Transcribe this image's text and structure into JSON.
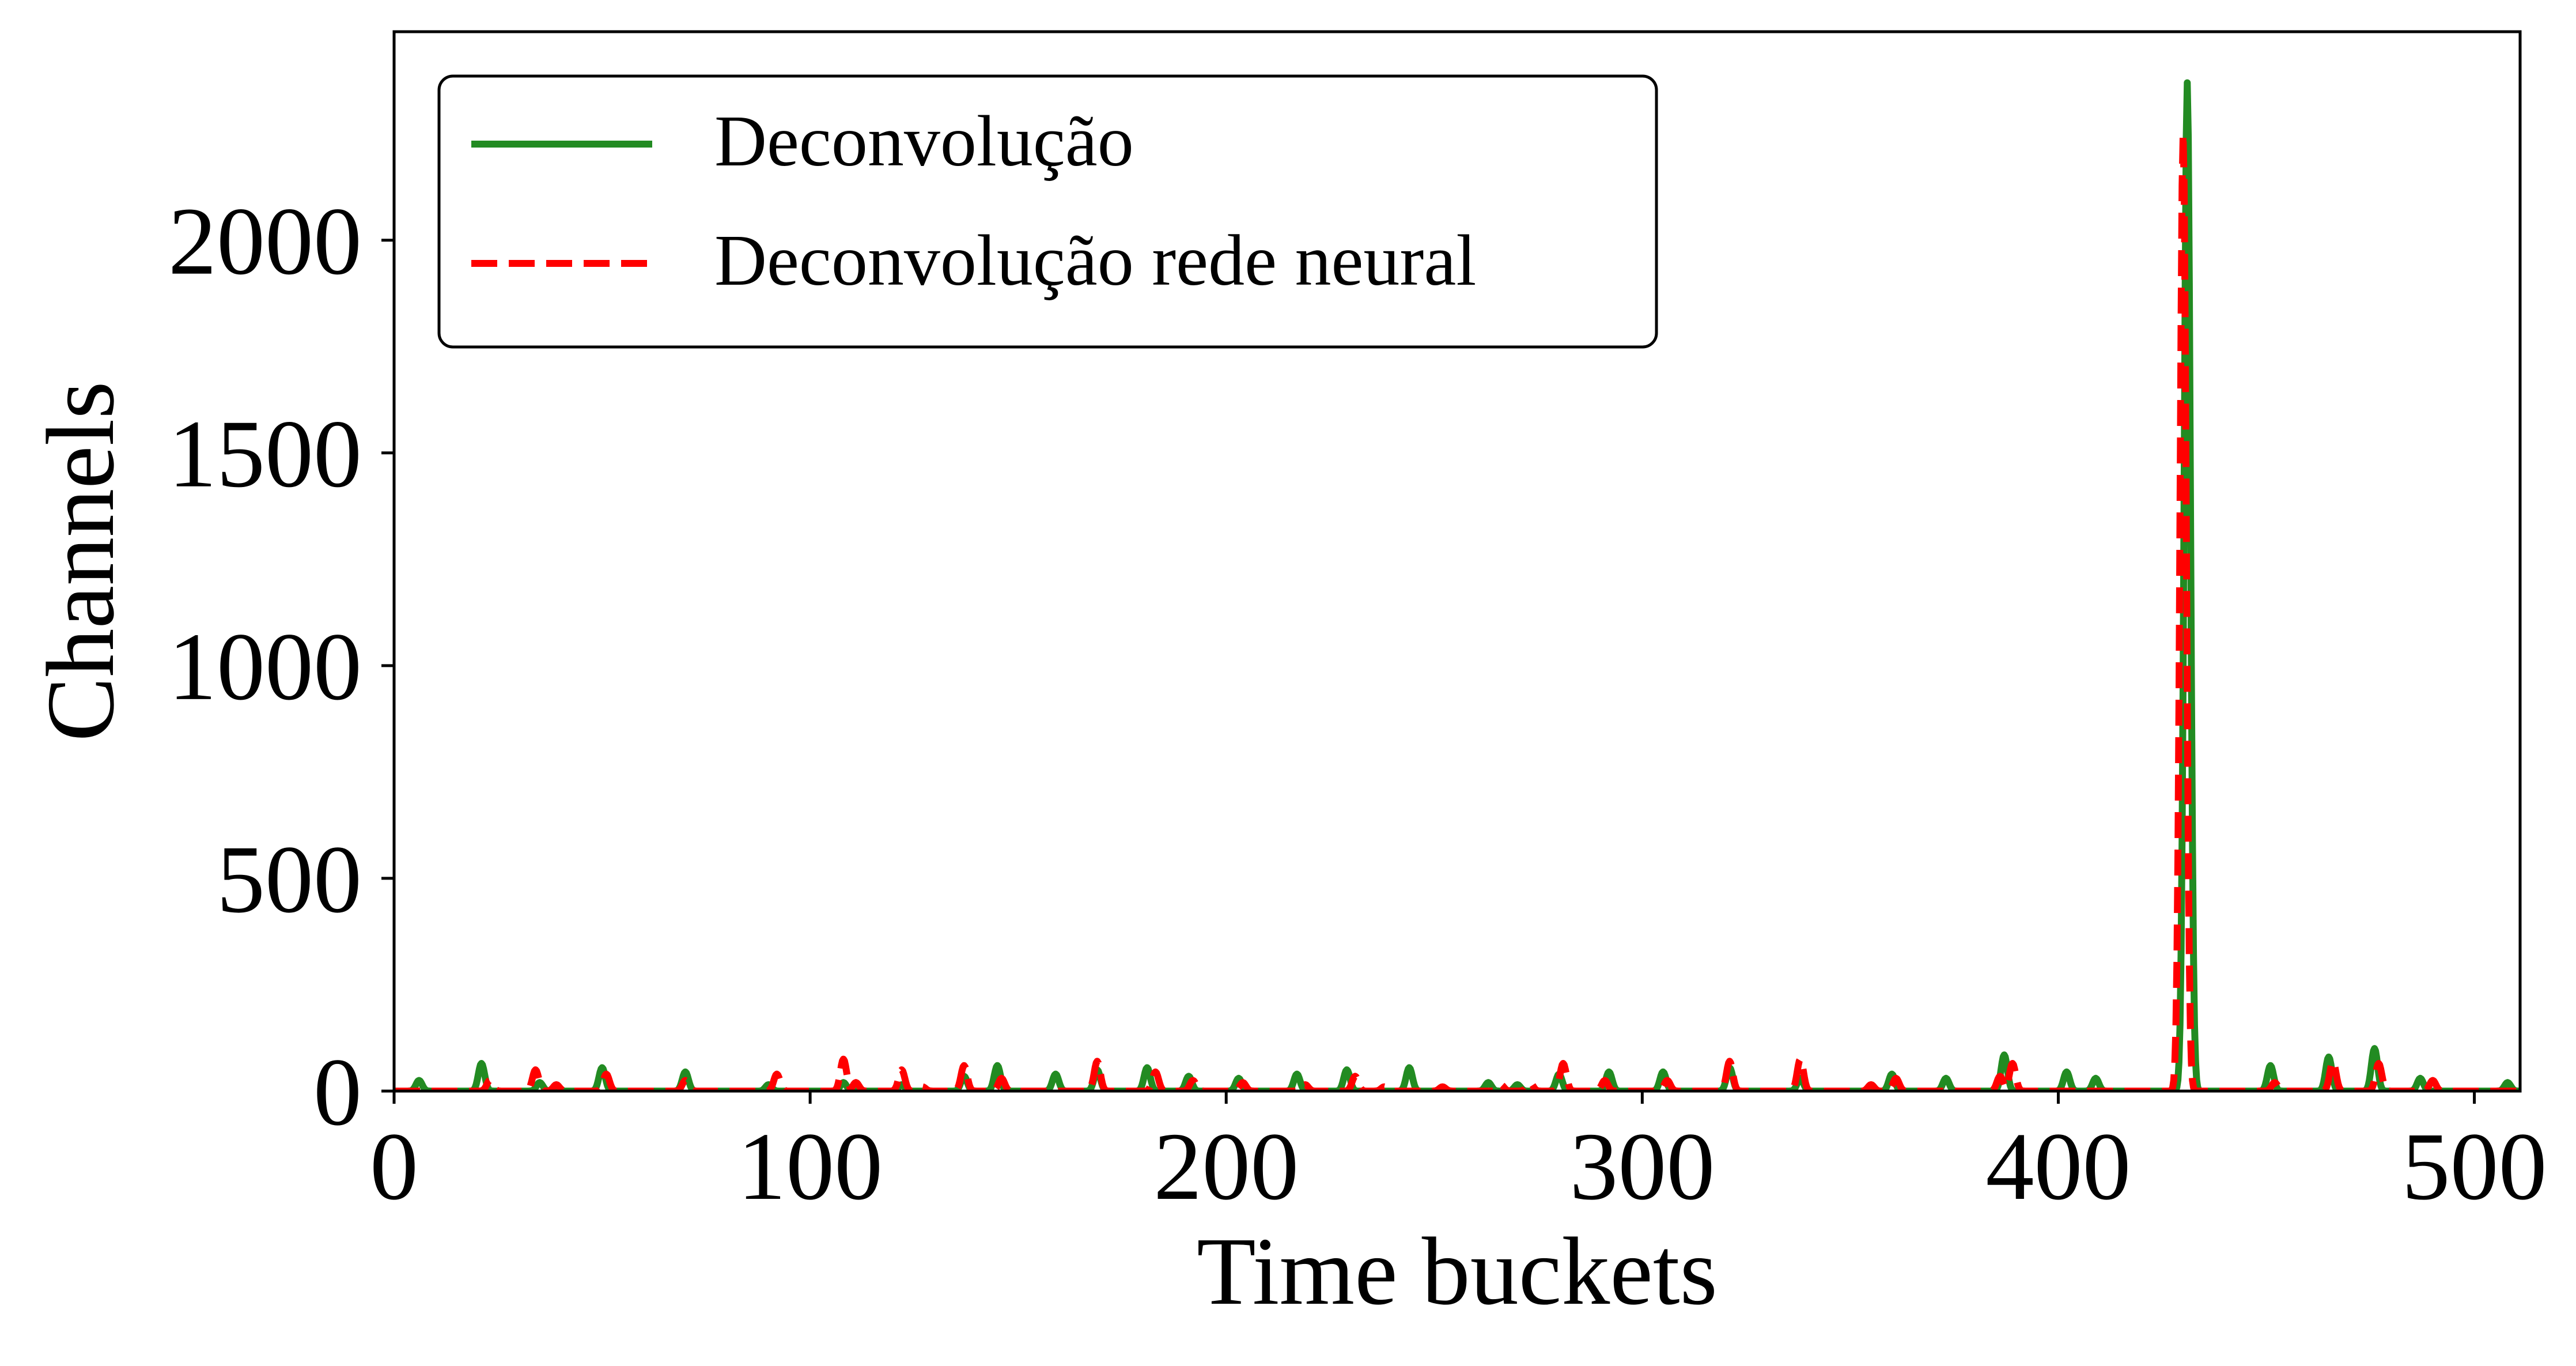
{
  "chart_data": {
    "type": "line",
    "title": "",
    "xlabel": "Time buckets",
    "ylabel": "Channels",
    "xlim": [
      0,
      511
    ],
    "ylim": [
      0,
      2490
    ],
    "xticks": [
      0,
      100,
      200,
      300,
      400,
      500
    ],
    "yticks": [
      0,
      500,
      1000,
      1500,
      2000
    ],
    "grid": false,
    "legend_position": "top-left",
    "series": [
      {
        "name": "Deconvolução",
        "color": "#228B22",
        "style": "solid",
        "peaks": [
          [
            6,
            25
          ],
          [
            21,
            65
          ],
          [
            35,
            20
          ],
          [
            50,
            55
          ],
          [
            70,
            45
          ],
          [
            90,
            15
          ],
          [
            108,
            20
          ],
          [
            122,
            15
          ],
          [
            137,
            35
          ],
          [
            145,
            60
          ],
          [
            159,
            40
          ],
          [
            169,
            50
          ],
          [
            181,
            55
          ],
          [
            191,
            35
          ],
          [
            203,
            30
          ],
          [
            217,
            40
          ],
          [
            229,
            50
          ],
          [
            244,
            55
          ],
          [
            263,
            20
          ],
          [
            270,
            15
          ],
          [
            280,
            40
          ],
          [
            292,
            45
          ],
          [
            305,
            45
          ],
          [
            321,
            55
          ],
          [
            338,
            30
          ],
          [
            360,
            40
          ],
          [
            373,
            30
          ],
          [
            387,
            85
          ],
          [
            402,
            45
          ],
          [
            409,
            30
          ],
          [
            431,
            2370
          ],
          [
            451,
            60
          ],
          [
            465,
            80
          ],
          [
            476,
            100
          ],
          [
            487,
            30
          ],
          [
            508,
            20
          ]
        ]
      },
      {
        "name": "Deconvolução rede neural",
        "color": "#FF0000",
        "style": "dashed",
        "peaks": [
          [
            23,
            25
          ],
          [
            34,
            50
          ],
          [
            39,
            15
          ],
          [
            51,
            40
          ],
          [
            70,
            25
          ],
          [
            92,
            40
          ],
          [
            108,
            75
          ],
          [
            111,
            20
          ],
          [
            122,
            50
          ],
          [
            127,
            10
          ],
          [
            137,
            60
          ],
          [
            146,
            30
          ],
          [
            169,
            70
          ],
          [
            183,
            45
          ],
          [
            192,
            25
          ],
          [
            204,
            20
          ],
          [
            219,
            15
          ],
          [
            231,
            35
          ],
          [
            238,
            10
          ],
          [
            252,
            10
          ],
          [
            266,
            15
          ],
          [
            273,
            20
          ],
          [
            281,
            65
          ],
          [
            291,
            25
          ],
          [
            306,
            25
          ],
          [
            321,
            70
          ],
          [
            338,
            75
          ],
          [
            355,
            15
          ],
          [
            361,
            30
          ],
          [
            386,
            35
          ],
          [
            389,
            65
          ],
          [
            430,
            2250
          ],
          [
            452,
            20
          ],
          [
            466,
            70
          ],
          [
            477,
            65
          ],
          [
            490,
            25
          ]
        ]
      }
    ]
  }
}
